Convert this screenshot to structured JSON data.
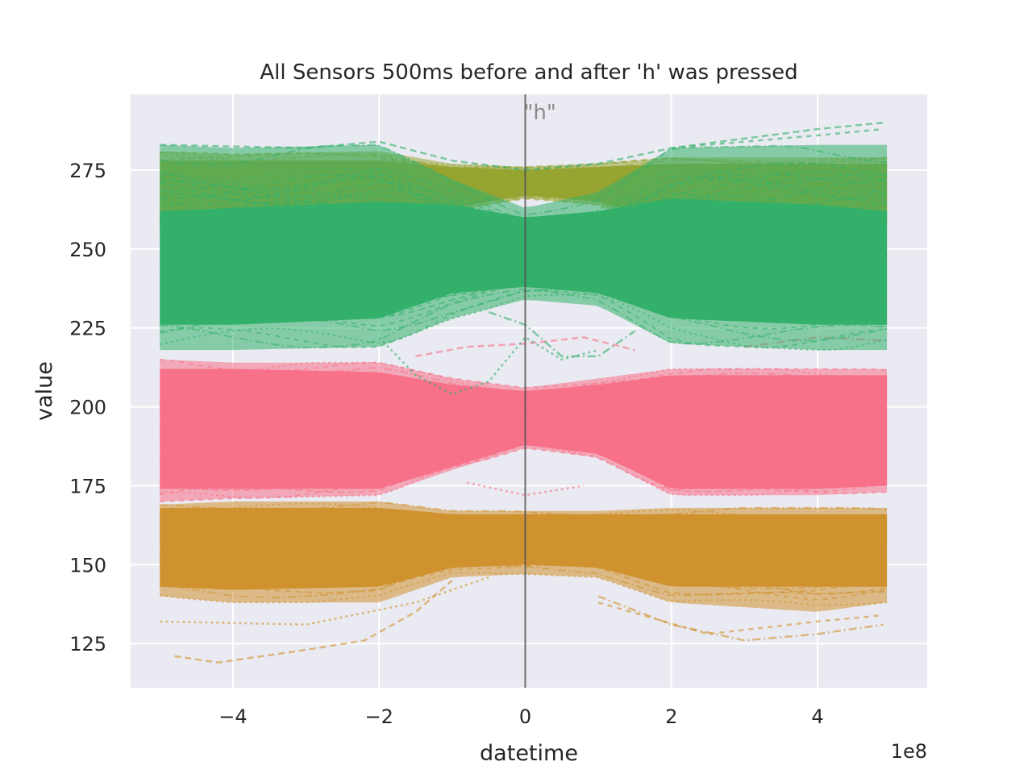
{
  "chart_data": {
    "type": "line",
    "title": "All Sensors 500ms before and after 'h' was pressed",
    "xlabel": "datetime",
    "ylabel": "value",
    "x_offset_label": "1e8",
    "xlim": [
      -5.4,
      5.5
    ],
    "ylim": [
      111,
      299
    ],
    "x_ticks": [
      -4,
      -2,
      0,
      2,
      4
    ],
    "x_tick_labels": [
      "−4",
      "−2",
      "0",
      "2",
      "4"
    ],
    "y_ticks": [
      125,
      150,
      175,
      200,
      225,
      250,
      275
    ],
    "y_tick_labels": [
      "125",
      "150",
      "175",
      "200",
      "225",
      "250",
      "275"
    ],
    "grid": true,
    "background": "#eaeaf2",
    "annotation": {
      "text": "\"h\"",
      "x": 0,
      "color": "#8a8a8a"
    },
    "vline": {
      "x": 0,
      "color": "#555555"
    },
    "series": [
      {
        "color": "#d0922f",
        "band_x": [
          -5.0,
          -4.0,
          -2.0,
          -1.0,
          0.0,
          1.0,
          2.0,
          4.0,
          4.95
        ],
        "band_low": [
          140,
          138,
          138,
          146,
          147,
          146,
          138,
          135,
          138
        ],
        "band_high": [
          169,
          170,
          170,
          167,
          167,
          167,
          168,
          168,
          168
        ],
        "dense_low": [
          143,
          142,
          143,
          149,
          150,
          149,
          143,
          143,
          143
        ],
        "dense_high": [
          168,
          168,
          168,
          166,
          166,
          166,
          166,
          166,
          166
        ],
        "outliers": [
          {
            "x": [
              -4.8,
              -4.2,
              -3.0,
              -2.2,
              -1.5,
              -1.0
            ],
            "y": [
              121,
              119,
              123,
              126,
              135,
              145
            ]
          },
          {
            "x": [
              -5.0,
              -3.0,
              -1.5,
              -0.5
            ],
            "y": [
              132,
              131,
              138,
              146
            ]
          },
          {
            "x": [
              1.0,
              2.0,
              3.0,
              4.0,
              4.9
            ],
            "y": [
              140,
              131,
              126,
              128,
              131
            ]
          },
          {
            "x": [
              1.0,
              2.5,
              4.0,
              4.9
            ],
            "y": [
              138,
              128,
              132,
              134
            ]
          }
        ]
      },
      {
        "color": "#f77189",
        "band_x": [
          -5.0,
          -4.0,
          -2.0,
          -1.0,
          0.0,
          1.0,
          2.0,
          4.0,
          4.95
        ],
        "band_low": [
          170,
          171,
          172,
          180,
          187,
          184,
          172,
          172,
          173
        ],
        "band_high": [
          215,
          214,
          214,
          209,
          206,
          209,
          212,
          212,
          212
        ],
        "dense_low": [
          174,
          174,
          174,
          181,
          188,
          185,
          174,
          174,
          175
        ],
        "dense_high": [
          212,
          212,
          211,
          207,
          205,
          207,
          210,
          210,
          210
        ],
        "outliers": [
          {
            "x": [
              -1.5,
              -0.8,
              0.0,
              0.8,
              1.5
            ],
            "y": [
              216,
              219,
              220,
              222,
              218
            ]
          },
          {
            "x": [
              -0.8,
              0.0,
              0.8
            ],
            "y": [
              176,
              172,
              175
            ]
          },
          {
            "x": [
              3.0,
              4.0,
              4.9
            ],
            "y": [
              219,
              222,
              221
            ]
          }
        ]
      },
      {
        "color": "#97a431",
        "band_x": [
          -5.0,
          -4.0,
          -2.0,
          -1.0,
          0.0,
          1.0,
          2.0,
          4.0,
          4.95
        ],
        "band_low": [
          255,
          255,
          255,
          262,
          266,
          264,
          256,
          256,
          256
        ],
        "band_high": [
          281,
          280,
          281,
          277,
          276,
          277,
          279,
          279,
          279
        ],
        "dense_low": [
          257,
          257,
          257,
          263,
          267,
          265,
          258,
          258,
          258
        ],
        "dense_high": [
          278,
          278,
          278,
          276,
          275,
          276,
          277,
          277,
          277
        ],
        "outliers": []
      },
      {
        "color": "#33b06a",
        "band_x": [
          -5.0,
          -4.0,
          -2.0,
          -1.0,
          0.0,
          1.0,
          2.0,
          4.0,
          4.95
        ],
        "band_low": [
          218,
          218,
          219,
          228,
          234,
          232,
          220,
          218,
          218
        ],
        "band_high": [
          283,
          282,
          283,
          272,
          263,
          268,
          282,
          283,
          283
        ],
        "dense_low": [
          226,
          226,
          228,
          236,
          238,
          236,
          228,
          226,
          226
        ],
        "dense_high": [
          262,
          263,
          265,
          264,
          260,
          262,
          266,
          264,
          262
        ],
        "outliers": [
          {
            "x": [
              -5.0,
              -3.0,
              -2.0,
              -1.0,
              0.0,
              1.0,
              2.0,
              3.0,
              4.0,
              4.9
            ],
            "y": [
              283,
              282,
              284,
              278,
              275,
              277,
              282,
              285,
              288,
              290
            ]
          },
          {
            "x": [
              -2.0,
              -1.5,
              -1.0,
              -0.5,
              0.0,
              0.5,
              1.0
            ],
            "y": [
              222,
              210,
              204,
              208,
              222,
              215,
              218
            ]
          },
          {
            "x": [
              -0.5,
              0.0,
              0.5,
              1.0,
              1.5
            ],
            "y": [
              230,
              226,
              216,
              216,
              224
            ]
          },
          {
            "x": [
              2.0,
              3.0,
              4.0,
              4.9
            ],
            "y": [
              282,
              284,
              286,
              288
            ]
          }
        ]
      }
    ]
  }
}
